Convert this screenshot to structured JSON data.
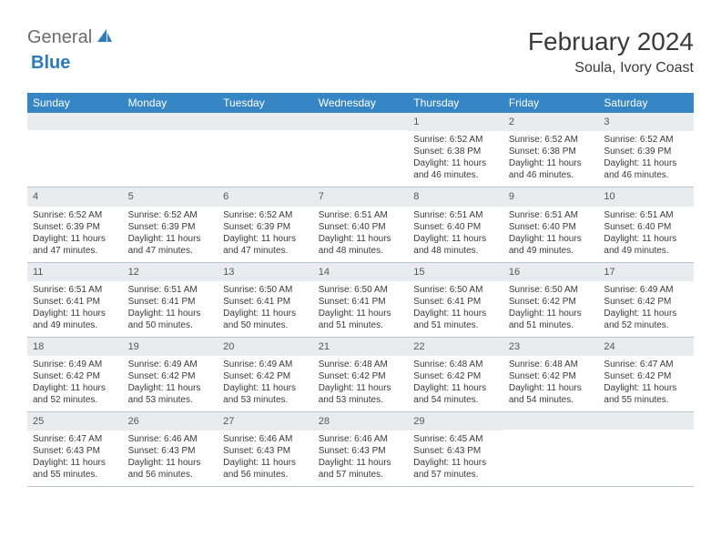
{
  "brand": {
    "name1": "General",
    "name2": "Blue"
  },
  "title": "February 2024",
  "location": "Soula, Ivory Coast",
  "colors": {
    "header_bg": "#3686c6",
    "header_fg": "#ffffff",
    "num_bg": "#e9ecef",
    "border": "#b8c5d0",
    "text": "#3a3a3a",
    "logo_gray": "#6b6b6b",
    "logo_blue": "#2b7bbd"
  },
  "dayNames": [
    "Sunday",
    "Monday",
    "Tuesday",
    "Wednesday",
    "Thursday",
    "Friday",
    "Saturday"
  ],
  "weeks": [
    [
      null,
      null,
      null,
      null,
      {
        "n": "1",
        "rise": "6:52 AM",
        "set": "6:38 PM",
        "d1": "11 hours",
        "d2": "46 minutes."
      },
      {
        "n": "2",
        "rise": "6:52 AM",
        "set": "6:38 PM",
        "d1": "11 hours",
        "d2": "46 minutes."
      },
      {
        "n": "3",
        "rise": "6:52 AM",
        "set": "6:39 PM",
        "d1": "11 hours",
        "d2": "46 minutes."
      }
    ],
    [
      {
        "n": "4",
        "rise": "6:52 AM",
        "set": "6:39 PM",
        "d1": "11 hours",
        "d2": "47 minutes."
      },
      {
        "n": "5",
        "rise": "6:52 AM",
        "set": "6:39 PM",
        "d1": "11 hours",
        "d2": "47 minutes."
      },
      {
        "n": "6",
        "rise": "6:52 AM",
        "set": "6:39 PM",
        "d1": "11 hours",
        "d2": "47 minutes."
      },
      {
        "n": "7",
        "rise": "6:51 AM",
        "set": "6:40 PM",
        "d1": "11 hours",
        "d2": "48 minutes."
      },
      {
        "n": "8",
        "rise": "6:51 AM",
        "set": "6:40 PM",
        "d1": "11 hours",
        "d2": "48 minutes."
      },
      {
        "n": "9",
        "rise": "6:51 AM",
        "set": "6:40 PM",
        "d1": "11 hours",
        "d2": "49 minutes."
      },
      {
        "n": "10",
        "rise": "6:51 AM",
        "set": "6:40 PM",
        "d1": "11 hours",
        "d2": "49 minutes."
      }
    ],
    [
      {
        "n": "11",
        "rise": "6:51 AM",
        "set": "6:41 PM",
        "d1": "11 hours",
        "d2": "49 minutes."
      },
      {
        "n": "12",
        "rise": "6:51 AM",
        "set": "6:41 PM",
        "d1": "11 hours",
        "d2": "50 minutes."
      },
      {
        "n": "13",
        "rise": "6:50 AM",
        "set": "6:41 PM",
        "d1": "11 hours",
        "d2": "50 minutes."
      },
      {
        "n": "14",
        "rise": "6:50 AM",
        "set": "6:41 PM",
        "d1": "11 hours",
        "d2": "51 minutes."
      },
      {
        "n": "15",
        "rise": "6:50 AM",
        "set": "6:41 PM",
        "d1": "11 hours",
        "d2": "51 minutes."
      },
      {
        "n": "16",
        "rise": "6:50 AM",
        "set": "6:42 PM",
        "d1": "11 hours",
        "d2": "51 minutes."
      },
      {
        "n": "17",
        "rise": "6:49 AM",
        "set": "6:42 PM",
        "d1": "11 hours",
        "d2": "52 minutes."
      }
    ],
    [
      {
        "n": "18",
        "rise": "6:49 AM",
        "set": "6:42 PM",
        "d1": "11 hours",
        "d2": "52 minutes."
      },
      {
        "n": "19",
        "rise": "6:49 AM",
        "set": "6:42 PM",
        "d1": "11 hours",
        "d2": "53 minutes."
      },
      {
        "n": "20",
        "rise": "6:49 AM",
        "set": "6:42 PM",
        "d1": "11 hours",
        "d2": "53 minutes."
      },
      {
        "n": "21",
        "rise": "6:48 AM",
        "set": "6:42 PM",
        "d1": "11 hours",
        "d2": "53 minutes."
      },
      {
        "n": "22",
        "rise": "6:48 AM",
        "set": "6:42 PM",
        "d1": "11 hours",
        "d2": "54 minutes."
      },
      {
        "n": "23",
        "rise": "6:48 AM",
        "set": "6:42 PM",
        "d1": "11 hours",
        "d2": "54 minutes."
      },
      {
        "n": "24",
        "rise": "6:47 AM",
        "set": "6:42 PM",
        "d1": "11 hours",
        "d2": "55 minutes."
      }
    ],
    [
      {
        "n": "25",
        "rise": "6:47 AM",
        "set": "6:43 PM",
        "d1": "11 hours",
        "d2": "55 minutes."
      },
      {
        "n": "26",
        "rise": "6:46 AM",
        "set": "6:43 PM",
        "d1": "11 hours",
        "d2": "56 minutes."
      },
      {
        "n": "27",
        "rise": "6:46 AM",
        "set": "6:43 PM",
        "d1": "11 hours",
        "d2": "56 minutes."
      },
      {
        "n": "28",
        "rise": "6:46 AM",
        "set": "6:43 PM",
        "d1": "11 hours",
        "d2": "57 minutes."
      },
      {
        "n": "29",
        "rise": "6:45 AM",
        "set": "6:43 PM",
        "d1": "11 hours",
        "d2": "57 minutes."
      },
      null,
      null
    ]
  ],
  "labels": {
    "sunrise": "Sunrise: ",
    "sunset": "Sunset: ",
    "daylight": "Daylight: ",
    "and": "and "
  }
}
